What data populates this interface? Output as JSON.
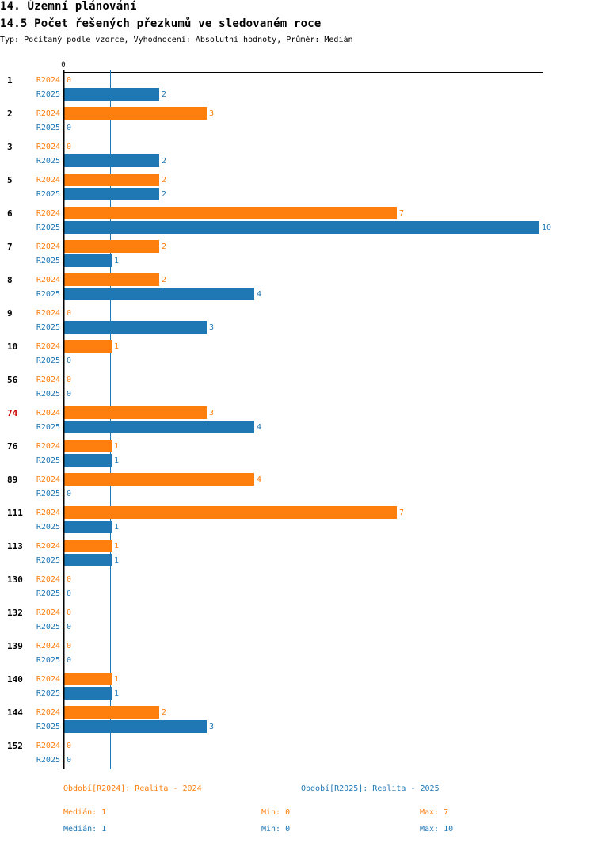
{
  "header": {
    "section": "14. Územní plánování",
    "title": "14.5 Počet řešených přezkumů ve sledovaném roce",
    "subtitle": "Typ: Počítaný podle vzorce, Vyhodnocení: Absolutní hodnoty, Průměr: Medián"
  },
  "chart_data": {
    "type": "bar",
    "orientation": "horizontal",
    "axis_zero_label": "0",
    "median_marker": 1,
    "highlight_category": "74",
    "categories": [
      "1",
      "2",
      "3",
      "5",
      "6",
      "7",
      "8",
      "9",
      "10",
      "56",
      "74",
      "76",
      "89",
      "111",
      "113",
      "130",
      "132",
      "139",
      "140",
      "144",
      "152"
    ],
    "series": [
      {
        "name": "R2024",
        "color": "#ff7f0e",
        "values": [
          0,
          3,
          0,
          2,
          7,
          2,
          2,
          0,
          1,
          0,
          3,
          1,
          4,
          7,
          1,
          0,
          0,
          0,
          1,
          2,
          0
        ]
      },
      {
        "name": "R2025",
        "color": "#1f77b4",
        "values": [
          2,
          0,
          2,
          2,
          10,
          1,
          4,
          3,
          0,
          0,
          4,
          1,
          0,
          1,
          1,
          0,
          0,
          0,
          1,
          3,
          0
        ]
      }
    ],
    "xlim": [
      0,
      10
    ]
  },
  "legend": {
    "r2024": "Období[R2024]: Realita - 2024",
    "r2025": "Období[R2025]: Realita - 2025"
  },
  "stats": {
    "r2024": {
      "median": "Medián: 1",
      "min": "Min: 0",
      "max": "Max: 7"
    },
    "r2025": {
      "median": "Medián: 1",
      "min": "Min: 0",
      "max": "Max: 10"
    }
  },
  "colors": {
    "r2024": "#ff7f0e",
    "r2025": "#1f77b4",
    "highlight": "#cc0000"
  }
}
